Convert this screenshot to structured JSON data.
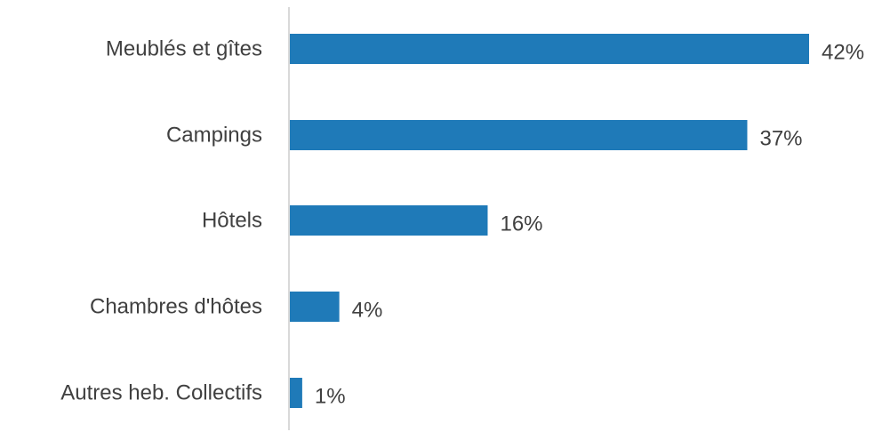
{
  "chart_data": {
    "type": "bar",
    "orientation": "horizontal",
    "categories": [
      "Meublés et gîtes",
      "Campings",
      "Hôtels",
      "Chambres d'hôtes",
      "Autres heb. Collectifs"
    ],
    "values": [
      42,
      37,
      16,
      4,
      1
    ],
    "value_labels": [
      "42%",
      "37%",
      "16%",
      "4%",
      "1%"
    ],
    "unit": "%",
    "xlim": [
      0,
      45
    ],
    "bar_color": "#1F7AB8",
    "axis_color": "#D9D9D9",
    "text_color": "#404040",
    "grid": false,
    "legend": "none"
  }
}
